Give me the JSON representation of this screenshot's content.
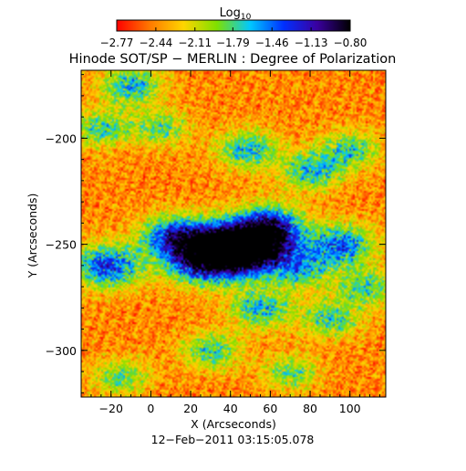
{
  "chart_data": {
    "type": "heatmap",
    "title": "Hinode SOT/SP − MERLIN : Degree of Polarization",
    "date": "12−Feb−2011 03:15:05.078",
    "xlabel": "X (Arcseconds)",
    "ylabel": "Y (Arcseconds)",
    "xlim": [
      -35,
      118
    ],
    "ylim": [
      -322,
      -168
    ],
    "x_ticks": [
      -20,
      0,
      20,
      40,
      60,
      80,
      100
    ],
    "x_tick_labels": [
      "−20",
      "0",
      "20",
      "40",
      "60",
      "80",
      "100"
    ],
    "y_ticks": [
      -200,
      -250,
      -300
    ],
    "y_tick_labels": [
      "−200",
      "−250",
      "−300"
    ],
    "colorbar": {
      "label_main": "Log",
      "label_sub": "10",
      "ticks": [
        -2.77,
        -2.44,
        -2.11,
        -1.79,
        -1.46,
        -1.13,
        -0.8
      ],
      "tick_labels": [
        "−2.77",
        "−2.44",
        "−2.11",
        "−1.79",
        "−1.46",
        "−1.13",
        "−0.80"
      ],
      "range": [
        -2.77,
        -0.8
      ],
      "colors": [
        "#ff0000",
        "#ff7a00",
        "#ffd500",
        "#7fe000",
        "#00c8ff",
        "#0030ff",
        "#3a00a0",
        "#000000"
      ]
    },
    "grid": false,
    "features": [
      {
        "x": 40,
        "y": -252,
        "level": 0.8
      },
      {
        "x": 25,
        "y": -255,
        "level": 0.7
      },
      {
        "x": 55,
        "y": -250,
        "level": 0.65
      },
      {
        "x": -22,
        "y": -260,
        "level": 0.55
      },
      {
        "x": 95,
        "y": -250,
        "level": 0.5
      },
      {
        "x": 60,
        "y": -240,
        "level": 0.45
      },
      {
        "x": 10,
        "y": -245,
        "level": 0.45
      },
      {
        "x": 80,
        "y": -215,
        "level": 0.4
      },
      {
        "x": 48,
        "y": -205,
        "level": 0.4
      },
      {
        "x": 100,
        "y": -205,
        "level": 0.35
      },
      {
        "x": 55,
        "y": -280,
        "level": 0.4
      },
      {
        "x": 90,
        "y": -285,
        "level": 0.35
      },
      {
        "x": -10,
        "y": -175,
        "level": 0.4
      },
      {
        "x": -25,
        "y": -195,
        "level": 0.35
      },
      {
        "x": 30,
        "y": -300,
        "level": 0.35
      },
      {
        "x": 108,
        "y": -270,
        "level": 0.35
      },
      {
        "x": 70,
        "y": -310,
        "level": 0.3
      },
      {
        "x": -15,
        "y": -312,
        "level": 0.3
      },
      {
        "x": 5,
        "y": -195,
        "level": 0.3
      },
      {
        "x": 75,
        "y": -262,
        "level": 0.35
      }
    ]
  }
}
